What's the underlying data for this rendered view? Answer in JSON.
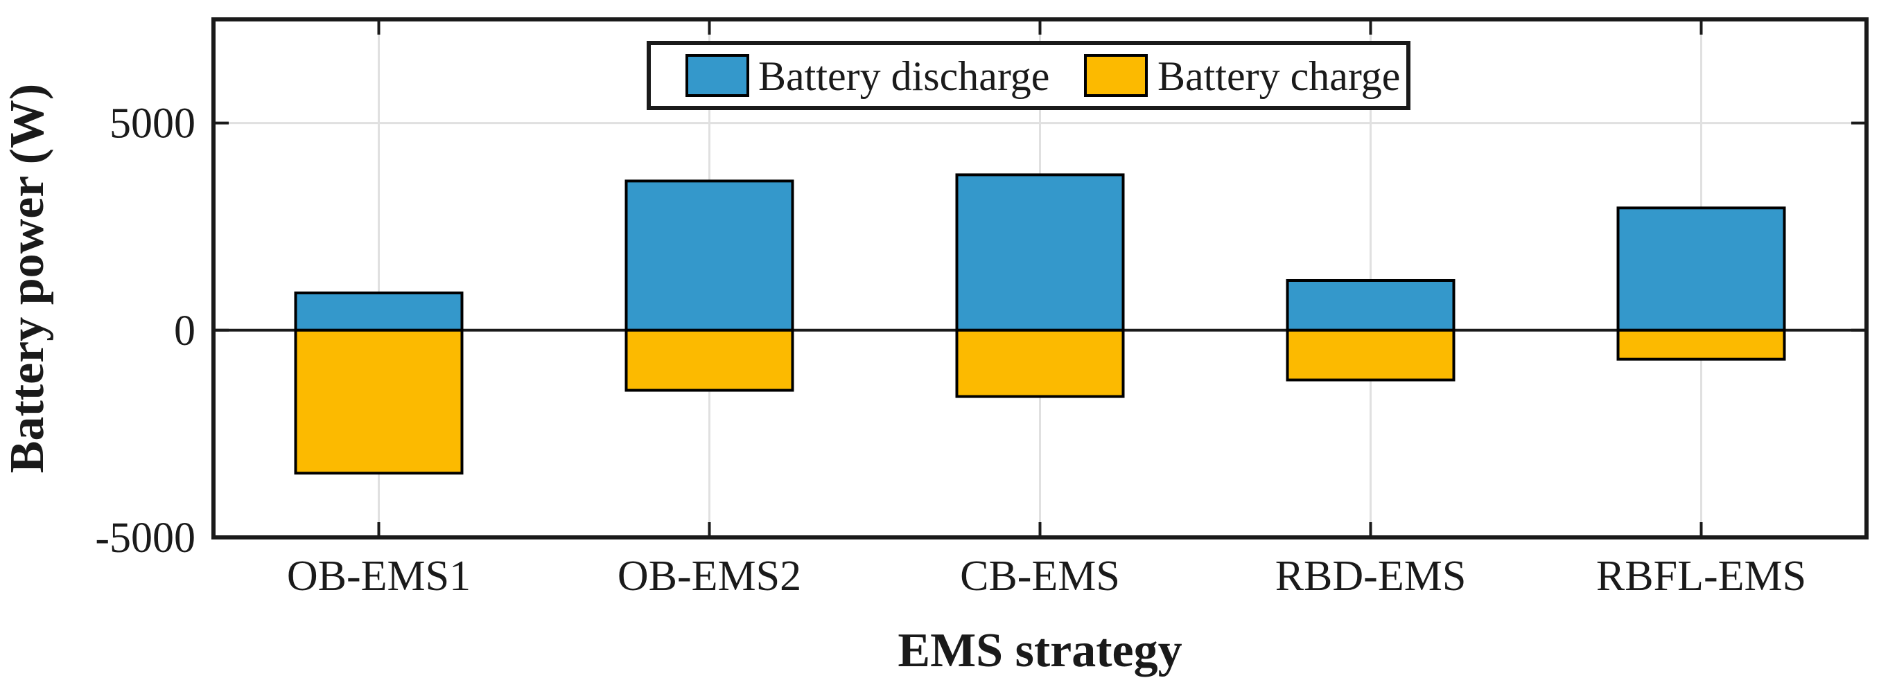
{
  "chart_data": {
    "type": "bar",
    "title": "",
    "categories": [
      "OB-EMS1",
      "OB-EMS2",
      "CB-EMS",
      "RBD-EMS",
      "RBFL-EMS"
    ],
    "series": [
      {
        "name": "Battery discharge",
        "color": "#3498CB",
        "values": [
          900,
          3600,
          3750,
          1200,
          2950
        ]
      },
      {
        "name": "Battery charge",
        "color": "#FCBA00",
        "values": [
          -3450,
          -1450,
          -1600,
          -1200,
          -700
        ]
      }
    ],
    "xlabel": "EMS strategy",
    "ylabel": "Battery power (W)",
    "ylim": [
      -5000,
      7500
    ],
    "yticks": [
      -5000,
      0,
      5000
    ],
    "ytick_labels": [
      "-5000",
      "0",
      "5000"
    ],
    "grid": true,
    "grid_color": "#E0E0E0",
    "axis_color": "#1a1a1a",
    "bar_edge_color": "#000000",
    "zero_line": true,
    "legend_position": "top-center",
    "legend_entries": [
      "Battery discharge",
      "Battery charge"
    ]
  }
}
